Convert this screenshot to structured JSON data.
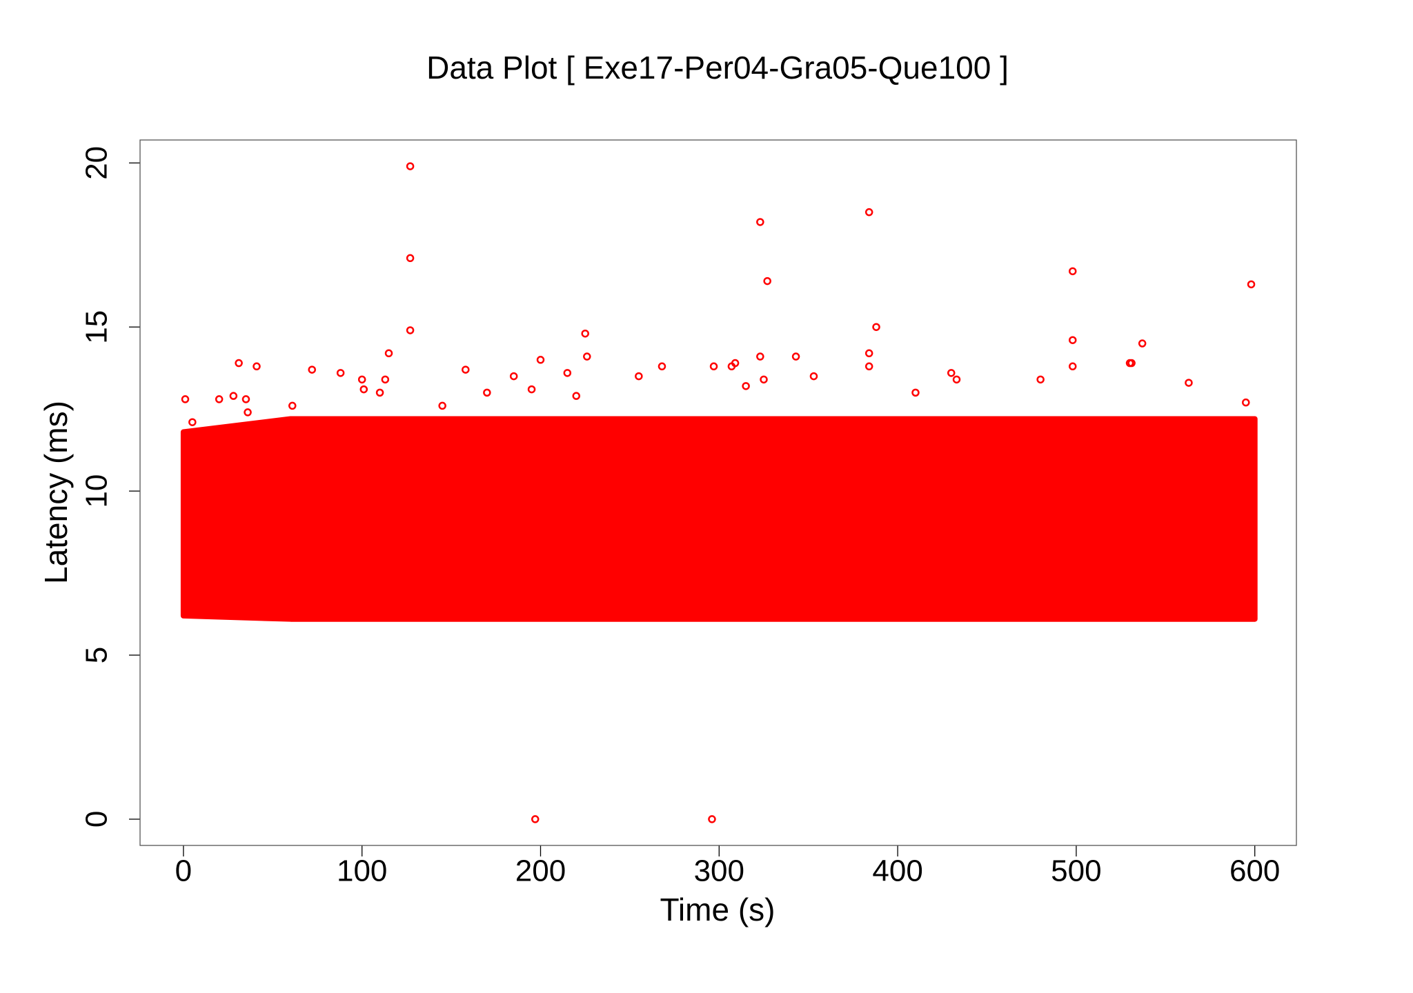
{
  "chart_data": {
    "type": "scatter",
    "title": "Data Plot [ Exe17-Per04-Gra05-Que100 ]",
    "x_label": "Time (s)",
    "y_label": "Latency (ms)",
    "xlim": [
      -24.3,
      623.3
    ],
    "xticks": [
      0,
      100,
      200,
      300,
      400,
      500,
      600
    ],
    "ylim": [
      -0.8,
      20.7
    ],
    "yticks": [
      0,
      5,
      10,
      15,
      20
    ],
    "band": {
      "color": "#ff0000",
      "x": [
        0,
        60,
        600
      ],
      "low": [
        6.2,
        6.1,
        6.1
      ],
      "high": [
        11.8,
        12.2,
        12.2
      ]
    },
    "series": [
      {
        "color": "#ff0000",
        "x": [
          1,
          5,
          20,
          28,
          31,
          35,
          41,
          36,
          61,
          72,
          88,
          100,
          101,
          110,
          113,
          115,
          127,
          127,
          127,
          145,
          158,
          170,
          185,
          195,
          197,
          200,
          215,
          220,
          225,
          226,
          255,
          268,
          296,
          297,
          307,
          309,
          315,
          323,
          323,
          325,
          327,
          343,
          353,
          384,
          384,
          384,
          388,
          410,
          430,
          433,
          480,
          498,
          498,
          498,
          530,
          531,
          537,
          563,
          598,
          595
        ],
        "values": [
          12.8,
          12.1,
          12.8,
          12.9,
          13.9,
          12.8,
          13.8,
          12.4,
          12.6,
          13.7,
          13.6,
          13.4,
          13.1,
          13.0,
          13.4,
          14.2,
          19.9,
          17.1,
          14.9,
          12.6,
          13.7,
          13.0,
          13.5,
          13.1,
          0,
          14.0,
          13.6,
          12.9,
          14.8,
          14.1,
          13.5,
          13.8,
          0,
          13.8,
          13.8,
          13.9,
          13.2,
          14.1,
          18.2,
          13.4,
          16.4,
          14.1,
          13.5,
          18.5,
          14.2,
          13.8,
          15.0,
          13.0,
          13.6,
          13.4,
          13.4,
          16.7,
          14.6,
          13.8,
          13.9,
          13.9,
          14.5,
          13.3,
          16.3,
          12.7
        ]
      }
    ]
  }
}
